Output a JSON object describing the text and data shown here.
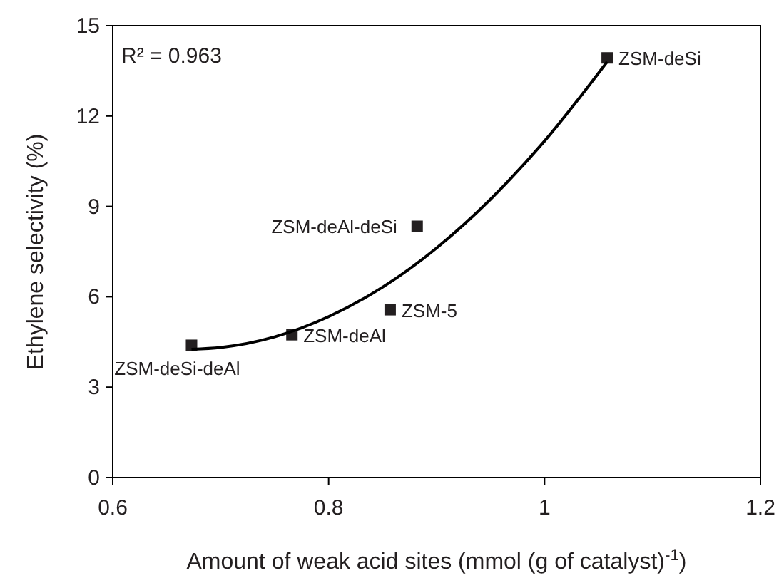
{
  "chart_data": {
    "type": "scatter",
    "xlabel": "Amount of weak acid sites (mmol (g of catalyst)$^{-1}$)",
    "ylabel": "Ethylene selectivity (%)",
    "xlim": [
      0.6,
      1.2
    ],
    "xticks": [
      0.6,
      0.8,
      1,
      1.2
    ],
    "ylim": [
      0,
      15
    ],
    "yticks": [
      0,
      3,
      6,
      9,
      12,
      15
    ],
    "grid": false,
    "marker": "square",
    "series": [
      {
        "color": "#231f20",
        "x": [
          0.673,
          0.766,
          0.857,
          0.882,
          1.058
        ],
        "values": [
          4.39,
          4.74,
          5.57,
          8.34,
          13.93
        ]
      },
      {
        "type": "line",
        "color": "#000000",
        "line_style": "solid",
        "marker": "none",
        "x": [
          0.673,
          0.7,
          0.75,
          0.8,
          0.85,
          0.9,
          0.95,
          1.0,
          1.058
        ],
        "values": [
          4.26,
          4.32,
          4.67,
          5.34,
          6.32,
          7.62,
          9.24,
          11.17,
          13.8
        ]
      }
    ],
    "annotations": [
      "R² = 0.963",
      {
        "text": "ZSM-deSi-deAl",
        "x": 0.673,
        "y": 4.39
      },
      {
        "text": "ZSM-deAl",
        "x": 0.766,
        "y": 4.74
      },
      {
        "text": "ZSM-5",
        "x": 0.857,
        "y": 5.57
      },
      {
        "text": "ZSM-deAl-deSi",
        "x": 0.882,
        "y": 8.34
      },
      {
        "text": "ZSM-deSi",
        "x": 1.058,
        "y": 13.93
      }
    ]
  }
}
